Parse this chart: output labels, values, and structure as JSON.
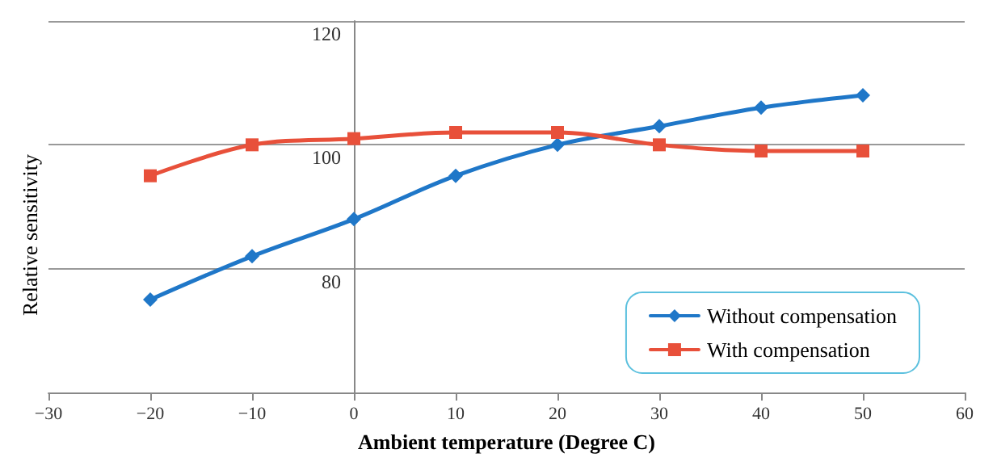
{
  "chart_data": {
    "type": "line",
    "xlabel": "Ambient temperature (Degree C)",
    "annotations": [
      "Relative sensitivity"
    ],
    "x": [
      -20,
      -10,
      0,
      10,
      20,
      30,
      40,
      50
    ],
    "series": [
      {
        "name": "Without compensation",
        "color": "#1f77c8",
        "marker": "diamond",
        "values": [
          75,
          82,
          88,
          95,
          100,
          103,
          106,
          108
        ]
      },
      {
        "name": "With compensation",
        "color": "#e8503a",
        "marker": "square",
        "values": [
          95,
          100,
          101,
          102,
          102,
          100,
          99,
          99
        ]
      }
    ],
    "xlim": [
      -30,
      60
    ],
    "xticks": [
      -30,
      -20,
      -10,
      0,
      10,
      20,
      30,
      40,
      50,
      60
    ],
    "ylim": [
      60,
      120
    ],
    "yticks": [
      80,
      100,
      120
    ],
    "grid": "y",
    "legend": "bottom right",
    "line_style": "solid"
  }
}
